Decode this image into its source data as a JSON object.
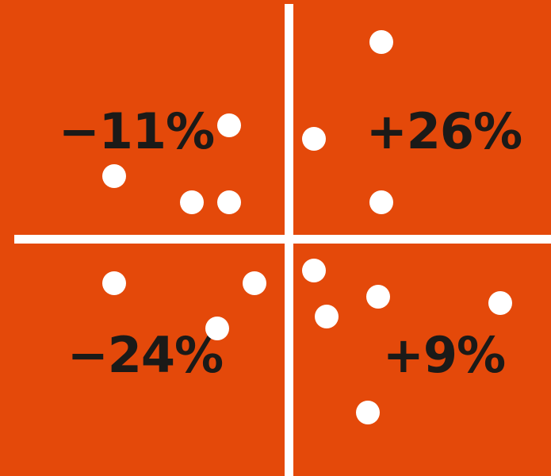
{
  "quadrants": [
    {
      "label": "−11%"
    },
    {
      "label": "+26%"
    },
    {
      "label": "−24%"
    },
    {
      "label": "+9%"
    }
  ]
}
